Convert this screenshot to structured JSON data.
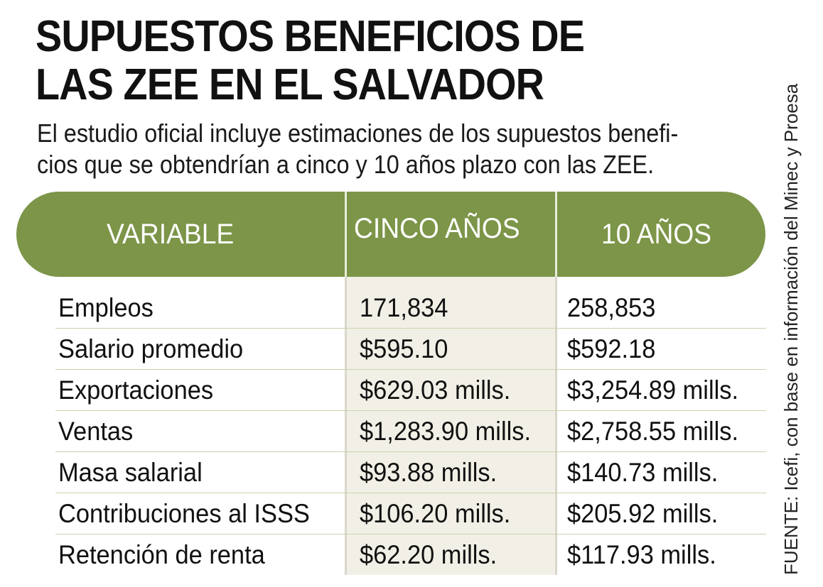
{
  "title": {
    "line1": "SUPUESTOS BENEFICIOS DE",
    "line2": "LAS ZEE EN EL SALVADOR"
  },
  "subtitle": {
    "line1": "El estudio oficial incluye estimaciones de los supuestos benefi-",
    "line2": "cios que se obtendrían a cinco y 10 años plazo con las ZEE."
  },
  "table": {
    "headers": [
      "VARIABLE",
      "CINCO AÑOS",
      "10 AÑOS"
    ],
    "rows": [
      [
        "Empleos",
        "171,834",
        "258,853"
      ],
      [
        "Salario promedio",
        "$595.10",
        "$592.18"
      ],
      [
        "Exportaciones",
        "$629.03 mills.",
        "$3,254.89 mills."
      ],
      [
        "Ventas",
        "$1,283.90 mills.",
        "$2,758.55 mills."
      ],
      [
        "Masa salarial",
        "$93.88 mills.",
        "$140.73 mills."
      ],
      [
        "Contribuciones al ISSS",
        "$106.20 mills.",
        "$205.92 mills."
      ],
      [
        "Retención de renta",
        "$62.20 mills.",
        "$117.93 mills."
      ]
    ]
  },
  "source": "FUENTE: Icefi, con base en información del Minec y Proesa",
  "colors": {
    "header_bg": "#7c9548",
    "column_shade": "#f2f0e6",
    "row_rule": "#c9d3ad"
  }
}
